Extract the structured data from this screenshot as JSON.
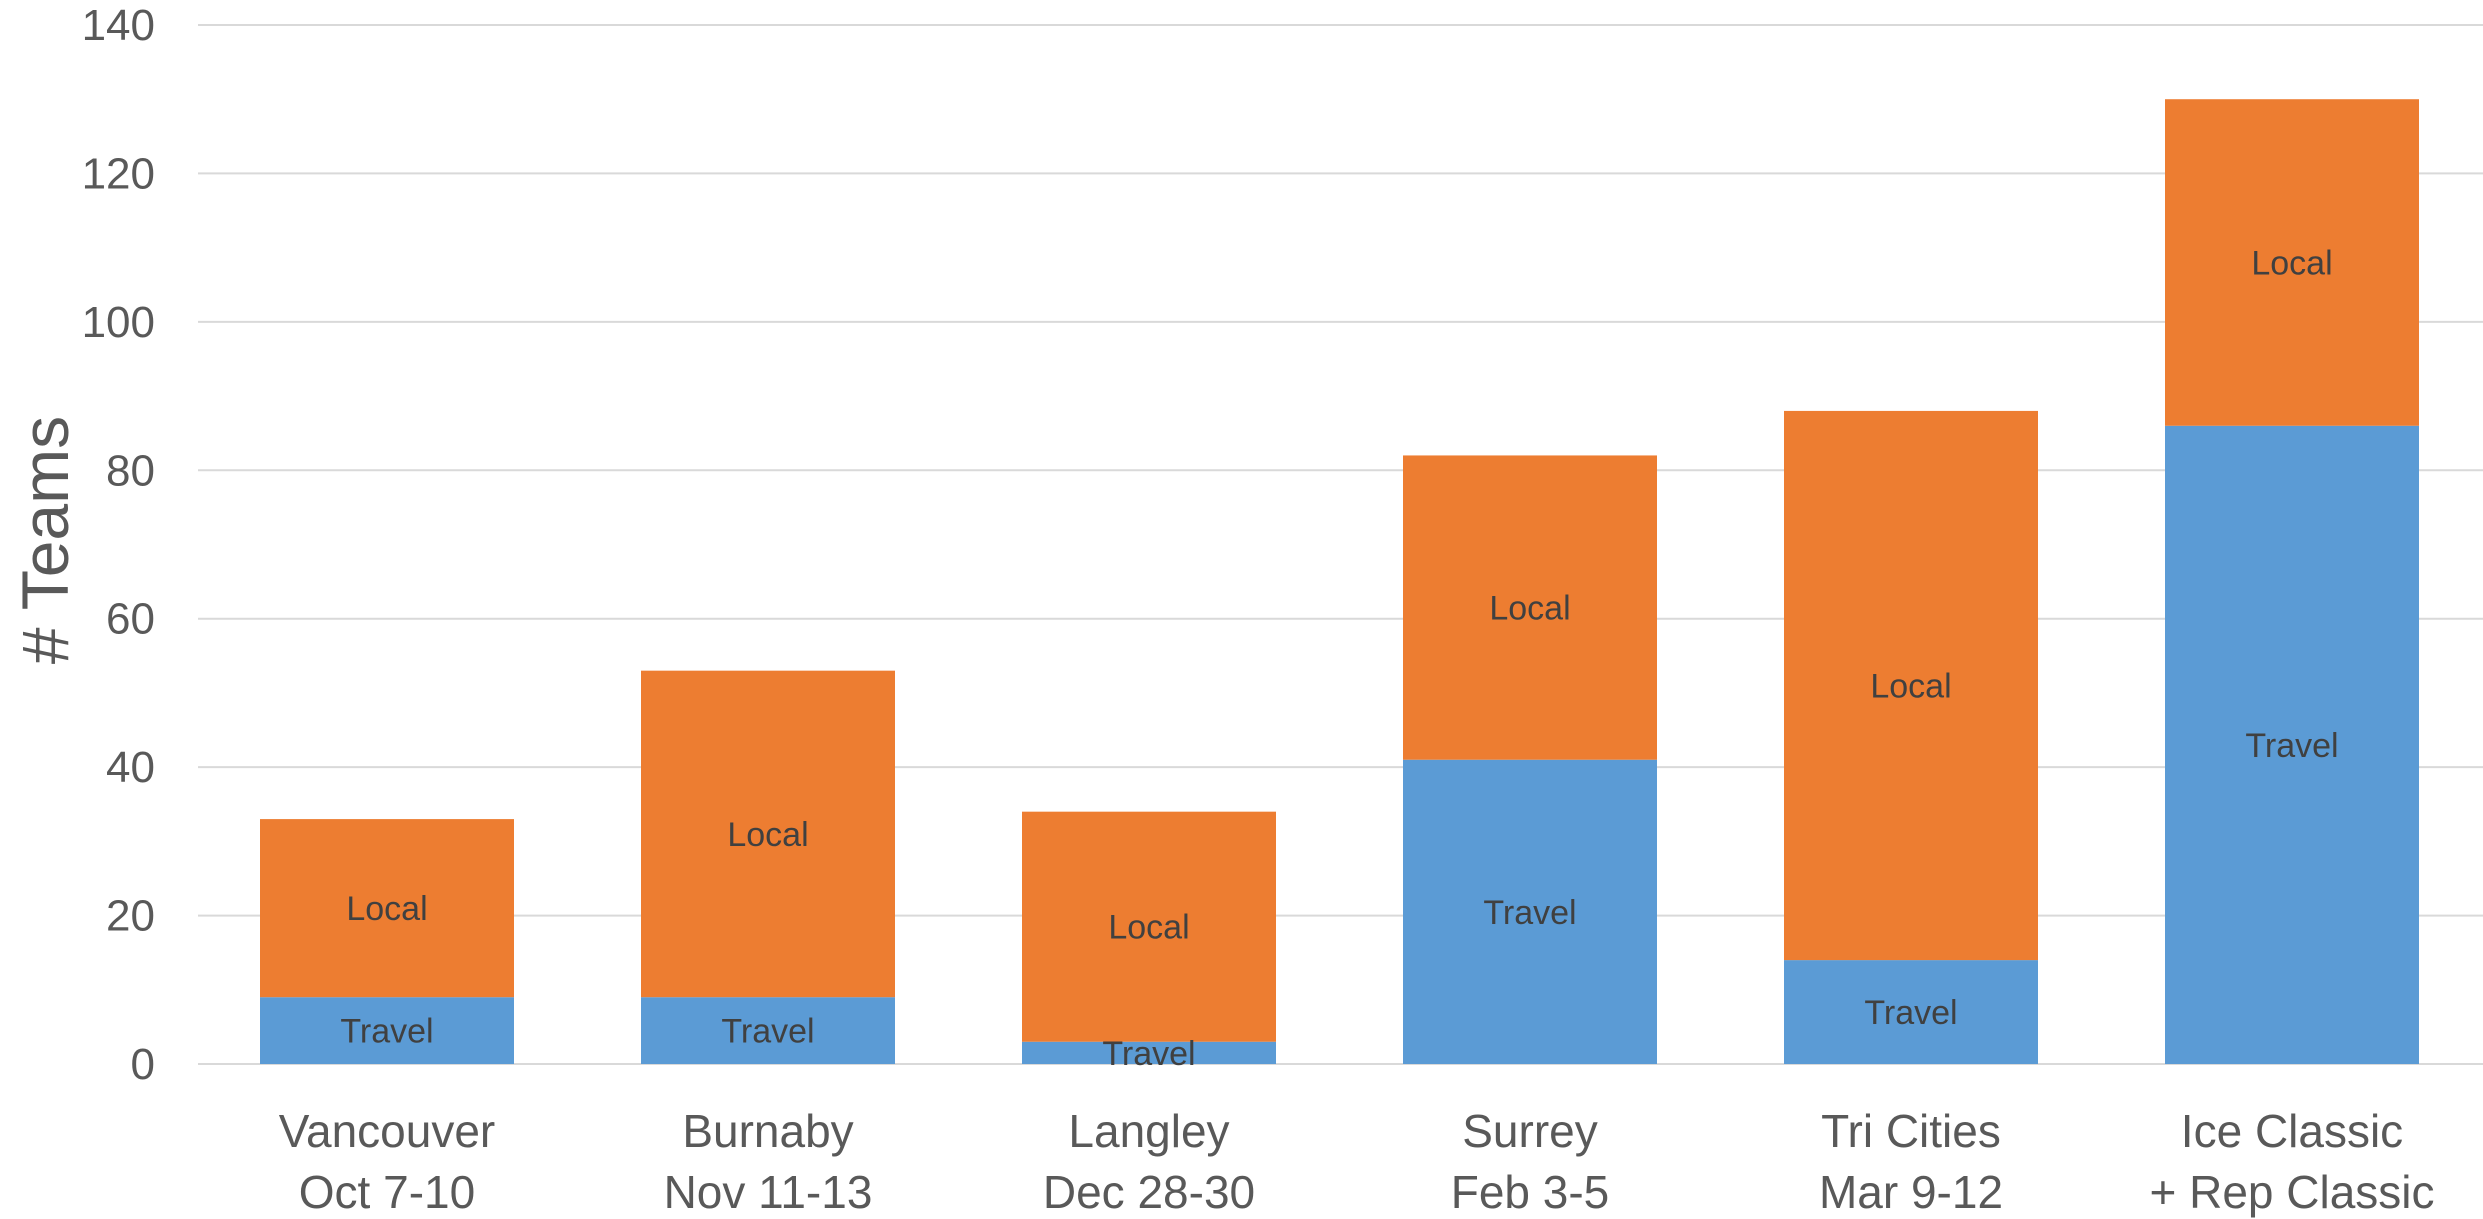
{
  "chart_data": {
    "type": "bar",
    "stacked": true,
    "title": "",
    "xlabel": "",
    "ylabel": "# Teams",
    "ylim": [
      0,
      140
    ],
    "y_ticks": [
      0,
      20,
      40,
      60,
      80,
      100,
      120,
      140
    ],
    "grid": true,
    "legend": "none",
    "categories": [
      [
        "Vancouver",
        "Oct 7-10"
      ],
      [
        "Burnaby",
        "Nov 11-13"
      ],
      [
        "Langley",
        "Dec 28-30"
      ],
      [
        "Surrey",
        "Feb 3-5"
      ],
      [
        "Tri Cities",
        "Mar 9-12"
      ],
      [
        "Ice Classic",
        "+ Rep Classic"
      ]
    ],
    "series": [
      {
        "name": "Travel",
        "color": "#5b9bd5",
        "values": [
          9,
          9,
          3,
          41,
          14,
          86
        ]
      },
      {
        "name": "Local",
        "color": "#ed7d31",
        "values": [
          24,
          44,
          31,
          41,
          74,
          44
        ]
      }
    ],
    "data_labels": "series name",
    "grid_color": "#d9d9d9",
    "text_color": "#595959"
  }
}
